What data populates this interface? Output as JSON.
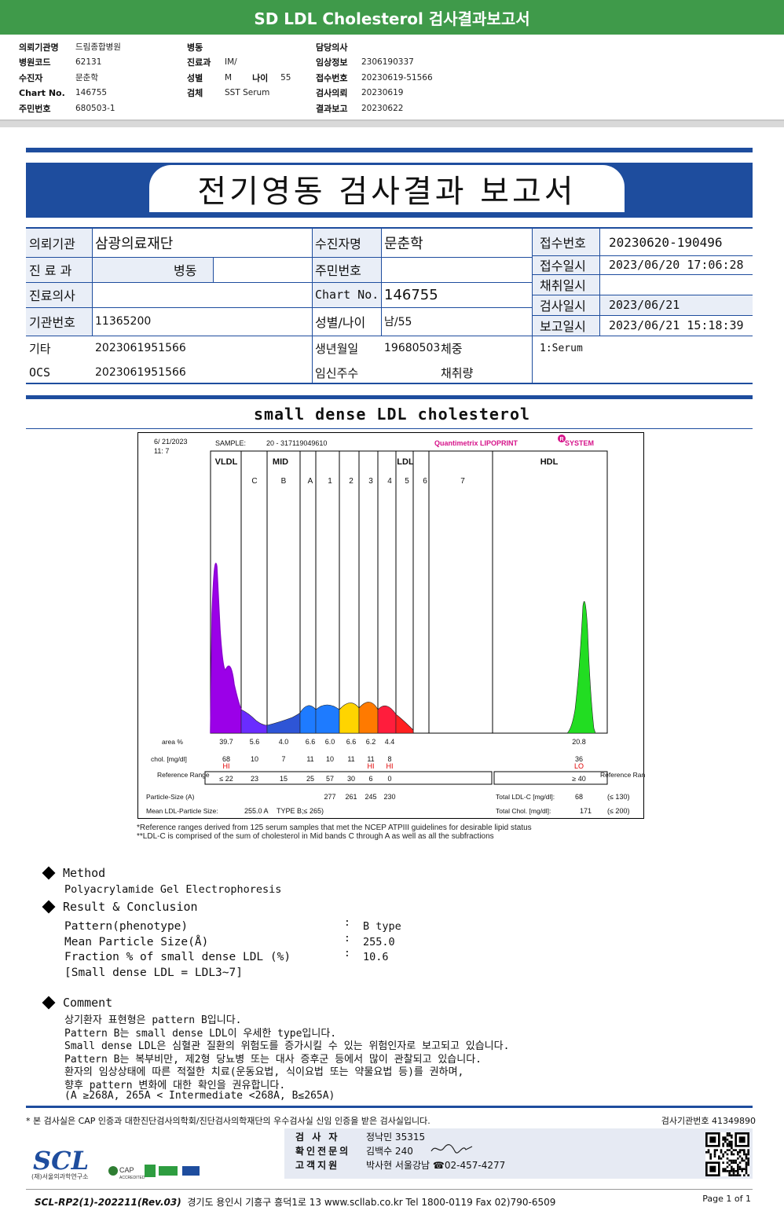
{
  "banner": {
    "title": "SD LDL Cholesterol 검사결과보고서"
  },
  "summary": {
    "col1": [
      {
        "label": "의뢰기관명",
        "value": "드림종합병원"
      },
      {
        "label": "병원코드",
        "value": "62131"
      },
      {
        "label": "수진자",
        "value": "문춘학"
      },
      {
        "label": "Chart No.",
        "value": "146755"
      },
      {
        "label": "주민번호",
        "value": "680503-1"
      }
    ],
    "col2": [
      {
        "label": "병동",
        "value": ""
      },
      {
        "label": "진료과",
        "value": "IM/"
      },
      {
        "label": "성별",
        "value": "M",
        "label2": "나이",
        "value2": "55"
      },
      {
        "label": "검체",
        "value": "SST Serum"
      }
    ],
    "col3": [
      {
        "label": "담당의사",
        "value": ""
      },
      {
        "label": "임상정보",
        "value": "2306190337"
      },
      {
        "label": "접수번호",
        "value": "20230619-51566"
      },
      {
        "label": "검사의뢰",
        "value": "20230619"
      },
      {
        "label": "결과보고",
        "value": "20230622"
      }
    ]
  },
  "report": {
    "title": "전기영동 검사결과 보고서",
    "info": {
      "institution_label": "의뢰기관",
      "institution": "삼광의료재단",
      "patient_label": "수진자명",
      "patient": "문춘학",
      "receipt_no_label": "접수번호",
      "receipt_no": "20230620-190496",
      "dept_label": "진 료 과",
      "dept": "병동",
      "resident_label": "주민번호",
      "resident": "",
      "receipt_time_label": "접수일시",
      "receipt_time": "2023/06/20 17:06:28",
      "collect_label": "채취일시",
      "collect": "",
      "doctor_label": "진료의사",
      "doctor": "",
      "chart_label": "Chart No.",
      "chart": "146755",
      "test_date_label": "검사일시",
      "test_date": "2023/06/21",
      "inst_no_label": "기관번호",
      "inst_no": "11365200",
      "sex_age_label": "성별/나이",
      "sex_age": "남/55",
      "report_date_label": "보고일시",
      "report_date": "2023/06/21 15:18:39",
      "etc_label": "기타",
      "etc": "2023061951566",
      "birth_label": "생년월일",
      "birth": "19680503",
      "weight_label": "체중",
      "weight": "",
      "specimen": "1:Serum",
      "ocs_label": "OCS",
      "ocs": "2023061951566",
      "pregnancy_label": "임신주수",
      "pregnancy": "",
      "volume_label": "채취량",
      "volume": ""
    }
  },
  "chart_title": "small dense LDL cholesterol",
  "chart_data": {
    "type": "area",
    "header": {
      "date": "6/ 21/2023",
      "time": "11:  7",
      "sample_label": "SAMPLE:",
      "sample": "20 - 317119049610",
      "brand": "Quantimetrix LIPOPRINT",
      "brand_mark": "R",
      "brand_tail": " SYSTEM"
    },
    "band_groups": [
      "VLDL",
      "MID",
      "LDL",
      "HDL"
    ],
    "bands": [
      "C",
      "B",
      "A",
      "1",
      "2",
      "3",
      "4",
      "5",
      "6",
      "7"
    ],
    "row_labels": {
      "area": "area %",
      "chol": "chol. [mg/dl]",
      "ref": "Reference Range",
      "ref_right": "Reference Range"
    },
    "area_pct": [
      39.7,
      5.6,
      4.0,
      6.6,
      6.0,
      6.6,
      6.2,
      4.4
    ],
    "area_pct_text": [
      "39.7",
      "5.6",
      "4.0",
      "6.6",
      "6.0",
      "6.6",
      "6.2",
      "4.4"
    ],
    "hdl_area_pct": "20.8",
    "chol": [
      "68",
      "10",
      "7",
      "11",
      "10",
      "11",
      "11",
      "8"
    ],
    "chol_flags": [
      "HI",
      "",
      "",
      "",
      "",
      "",
      "HI",
      "HI"
    ],
    "hdl_chol": "36",
    "hdl_flag": "LO",
    "reference": [
      "≤ 22",
      "23",
      "15",
      "25",
      "57",
      "30",
      "6",
      "0"
    ],
    "hdl_reference": "≥ 40",
    "particle_size_label": "Particle-Size (A)",
    "particle_sizes": [
      "277",
      "261",
      "245",
      "230"
    ],
    "mean_size_label": "Mean LDL-Particle Size:",
    "mean_size": "255.0 A",
    "mean_type": "TYPE B;≤ 265)",
    "total_ldl_label": "Total LDL-C [mg/dl]:",
    "total_ldl": "68",
    "total_ldl_ref": "(≤ 130)",
    "total_chol_label": "Total Chol. [mg/dl]:",
    "total_chol": "171",
    "total_chol_ref": "(≤ 200)",
    "peak_colors": [
      "#9b00e8",
      "#6a2cff",
      "#2e55d6",
      "#1e7bff",
      "#ffd400",
      "#ff7a00",
      "#ff1d3c",
      "#ff2020",
      "#22dd22"
    ]
  },
  "footnote": [
    "*Reference ranges derived from 125 serum samples that met the NCEP ATPIII guidelines for desirable lipid status",
    "**LDL-C is comprised of the sum of cholesterol in Mid bands C through A as well as all the subfractions"
  ],
  "method": {
    "heading": "Method",
    "text": "Polyacrylamide Gel Electrophoresis"
  },
  "result": {
    "heading": "Result & Conclusion",
    "rows": [
      {
        "label": "Pattern(phenotype)",
        "value": "B type"
      },
      {
        "label": "Mean Particle Size(Å)",
        "value": "255.0"
      },
      {
        "label": "Fraction % of small dense LDL (%)",
        "value": "10.6"
      }
    ],
    "note": "[Small dense LDL = LDL3~7]"
  },
  "comment": {
    "heading": "Comment",
    "lines": [
      "상기환자 표현형은 pattern B입니다.",
      "Pattern B는 small dense LDL이 우세한 type입니다.",
      "Small dense LDL은 심혈관 질환의 위험도를 증가시킬 수 있는 위험인자로 보고되고 있습니다.",
      "Pattern B는 복부비만, 제2형 당뇨병 또는 대사 증후군 등에서 많이 관찰되고 있습니다.",
      "환자의 임상상태에 따른 적절한 치료(운동요법, 식이요법 또는 약물요법 등)를 권하며,",
      "향후 pattern 변화에 대한 확인을 권유합니다.",
      "(A ≥268A, 265A < Intermediate <268A, B≤265A)"
    ]
  },
  "footer": {
    "cert": "* 본 검사실은 CAP 인증과 대한진단검사의학회/진단검사의학재단의 우수검사실 신임 인증을 받은 검사실입니다.",
    "lab_code": "검사기관번호 41349890",
    "staff": [
      {
        "role": "검 사 자",
        "name": "정낙민 35315"
      },
      {
        "role": "확인전문의",
        "name": "김백수 240"
      },
      {
        "role": "고객지원",
        "name": "박사현 서울강남 ☎02-457-4277"
      }
    ],
    "logo": "SCL",
    "logo_sub": "(재)서울의과학연구소",
    "cap_label": "CAP",
    "cap_sub": "ACCREDITED",
    "form_code": "SCL-RP2(1)-202211(Rev.03)",
    "address": "경기도 용인시 기흥구 흥덕1로 13  www.scllab.co.kr   Tel 1800-0119   Fax 02)790-6509",
    "page": "Page 1 of 1"
  }
}
